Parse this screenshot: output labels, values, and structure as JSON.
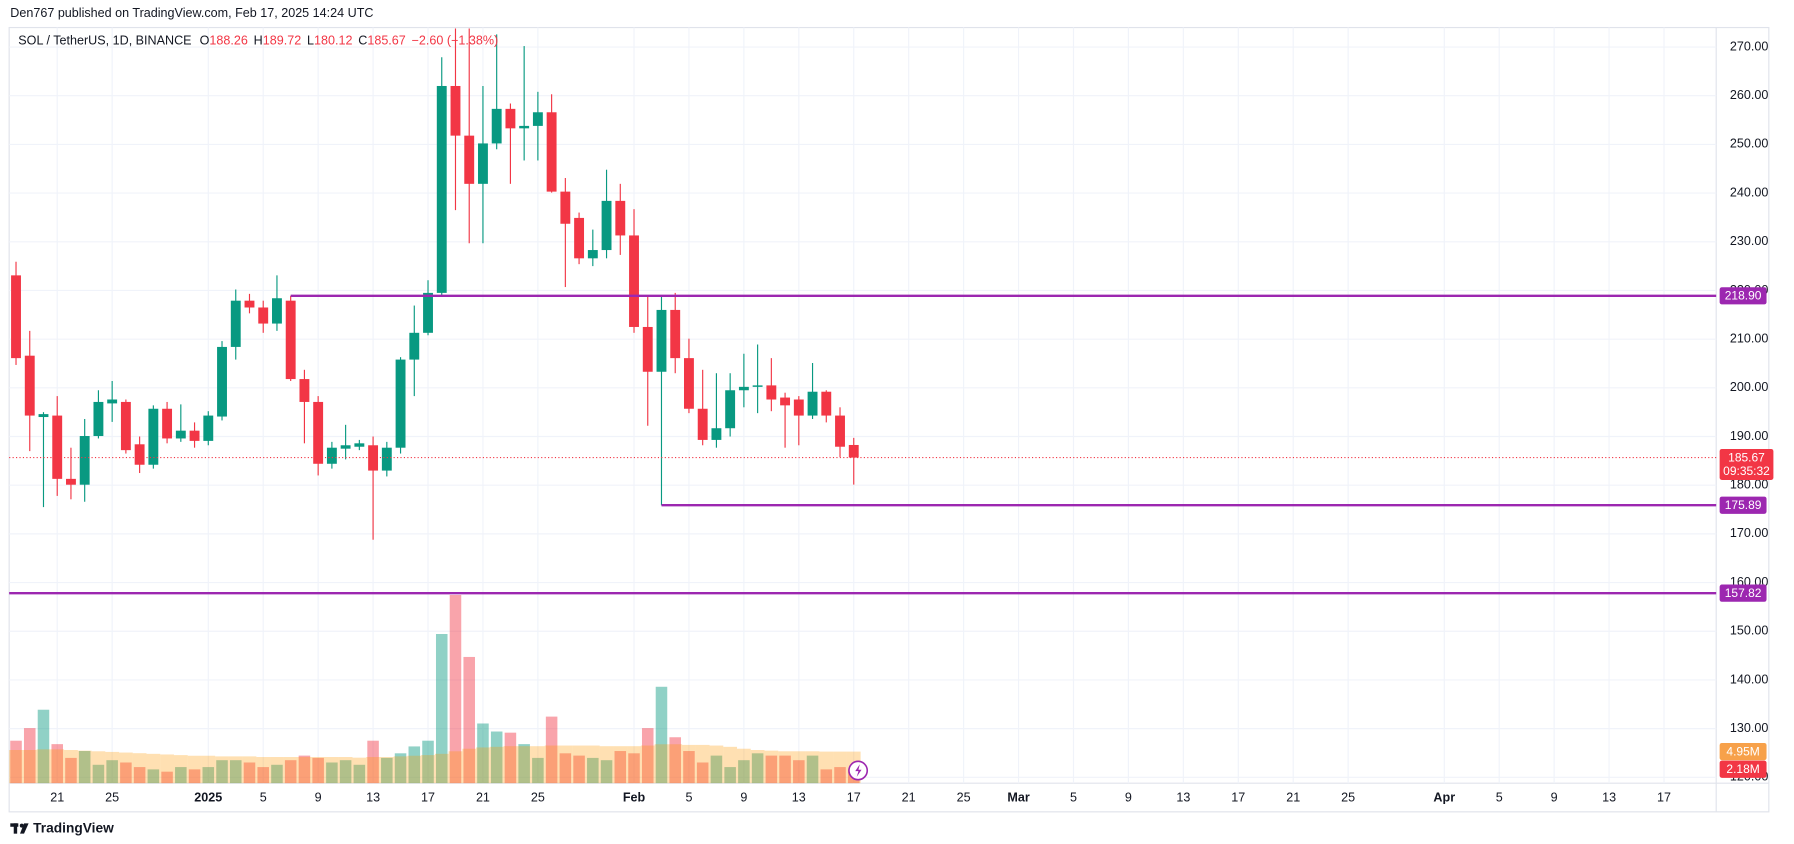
{
  "header": "Den767 published on TradingView.com, Feb 17, 2025 14:24 UTC",
  "footer": "TradingView",
  "chart_data": {
    "type": "candlestick",
    "title": "SOL / TetherUS, 1D, BINANCE",
    "legend_labels": [
      "O",
      "H",
      "L",
      "C"
    ],
    "change": "−2.60 (−1.38%)",
    "countdown": "09:35:32",
    "grid": true,
    "colors": {
      "up": "#089981",
      "down": "#f23645"
    },
    "xlim": [
      -0.5,
      123.8
    ],
    "xticks": [
      {
        "value": 3,
        "label": "21"
      },
      {
        "value": 7,
        "label": "25"
      },
      {
        "value": 14,
        "label": "2025"
      },
      {
        "value": 18,
        "label": "5"
      },
      {
        "value": 22,
        "label": "9"
      },
      {
        "value": 26,
        "label": "13"
      },
      {
        "value": 30,
        "label": "17"
      },
      {
        "value": 34,
        "label": "21"
      },
      {
        "value": 38,
        "label": "25"
      },
      {
        "value": 45,
        "label": "Feb"
      },
      {
        "value": 49,
        "label": "5"
      },
      {
        "value": 53,
        "label": "9"
      },
      {
        "value": 57,
        "label": "13"
      },
      {
        "value": 61,
        "label": "17"
      },
      {
        "value": 65,
        "label": "21"
      },
      {
        "value": 69,
        "label": "25"
      },
      {
        "value": 73,
        "label": "Mar"
      },
      {
        "value": 77,
        "label": "5"
      },
      {
        "value": 81,
        "label": "9"
      },
      {
        "value": 85,
        "label": "13"
      },
      {
        "value": 89,
        "label": "17"
      },
      {
        "value": 93,
        "label": "21"
      },
      {
        "value": 97,
        "label": "25"
      },
      {
        "value": 104,
        "label": "Apr"
      },
      {
        "value": 108,
        "label": "5"
      },
      {
        "value": 112,
        "label": "9"
      },
      {
        "value": 116,
        "label": "13"
      },
      {
        "value": 120,
        "label": "17"
      }
    ],
    "ylim": [
      118.8,
      274.0
    ],
    "yticks": [
      {
        "value": 120,
        "label": "120.00"
      },
      {
        "value": 130,
        "label": "130.00"
      },
      {
        "value": 140,
        "label": "140.00"
      },
      {
        "value": 150,
        "label": "150.00"
      },
      {
        "value": 160,
        "label": "160.00"
      },
      {
        "value": 170,
        "label": "170.00"
      },
      {
        "value": 180,
        "label": "180.00"
      },
      {
        "value": 190,
        "label": "190.00"
      },
      {
        "value": 200,
        "label": "200.00"
      },
      {
        "value": 210,
        "label": "210.00"
      },
      {
        "value": 220,
        "label": "220.00"
      },
      {
        "value": 230,
        "label": "230.00"
      },
      {
        "value": 240,
        "label": "240.00"
      },
      {
        "value": 250,
        "label": "250.00"
      },
      {
        "value": 260,
        "label": "260.00"
      },
      {
        "value": 270,
        "label": "270.00"
      }
    ],
    "open": [
      223.1,
      206.6,
      194.0,
      194.3,
      181.3,
      180.1,
      190.1,
      196.8,
      197.1,
      188.4,
      184.2,
      195.7,
      189.6,
      191.2,
      189.1,
      194.1,
      208.4,
      217.9,
      216.5,
      213.2,
      217.9,
      201.8,
      197.1,
      184.4,
      187.5,
      187.9,
      188.2,
      183.0,
      187.7,
      205.8,
      211.3,
      219.5,
      262.0,
      251.8,
      241.9,
      250.2,
      257.3,
      253.3,
      253.8,
      256.6,
      240.3,
      234.9,
      226.6,
      228.3,
      238.4,
      231.3,
      212.5,
      203.3,
      216.0,
      206.1,
      195.7,
      189.3,
      191.7,
      199.5,
      200.2,
      200.5,
      198.0,
      197.6,
      194.3,
      199.2,
      194.3,
      188.26
    ],
    "high": [
      225.9,
      211.7,
      195.0,
      198.3,
      187.7,
      193.6,
      199.5,
      201.4,
      197.6,
      190.0,
      196.4,
      197.1,
      196.6,
      192.9,
      195.2,
      209.6,
      220.2,
      219.3,
      217.9,
      223.1,
      218.9,
      203.7,
      198.3,
      188.9,
      192.4,
      189.3,
      190.0,
      188.9,
      206.3,
      216.9,
      222.1,
      267.9,
      273.8,
      273.8,
      262.0,
      272.6,
      258.4,
      270.2,
      260.8,
      260.3,
      243.1,
      236.0,
      232.5,
      244.8,
      241.9,
      236.7,
      218.9,
      218.9,
      219.5,
      210.1,
      203.7,
      203.0,
      203.0,
      207.0,
      208.9,
      206.1,
      199.0,
      198.3,
      205.1,
      199.5,
      196.0,
      189.72
    ],
    "low": [
      204.7,
      187.0,
      175.5,
      177.8,
      177.1,
      176.6,
      189.6,
      193.0,
      186.5,
      182.5,
      183.4,
      188.6,
      188.9,
      187.7,
      188.2,
      193.3,
      205.8,
      215.3,
      211.3,
      211.7,
      201.4,
      188.6,
      182.0,
      183.4,
      185.3,
      187.2,
      168.8,
      181.8,
      186.5,
      198.3,
      210.8,
      218.8,
      236.5,
      229.7,
      229.7,
      249.0,
      241.9,
      246.7,
      246.7,
      240.1,
      220.7,
      225.4,
      225.0,
      226.6,
      227.3,
      211.3,
      192.2,
      175.89,
      203.0,
      194.8,
      188.2,
      187.7,
      190.0,
      196.0,
      194.8,
      195.2,
      187.7,
      188.2,
      193.6,
      192.9,
      185.8,
      180.12
    ],
    "close": [
      206.1,
      194.3,
      194.6,
      181.3,
      180.1,
      190.1,
      197.1,
      197.6,
      187.2,
      184.2,
      195.7,
      189.6,
      191.2,
      189.1,
      194.3,
      208.4,
      217.9,
      216.5,
      213.2,
      218.4,
      201.8,
      197.1,
      184.4,
      187.7,
      188.2,
      188.6,
      183.0,
      187.7,
      205.8,
      211.3,
      219.5,
      262.0,
      251.8,
      241.9,
      250.2,
      257.3,
      253.3,
      253.8,
      256.6,
      240.3,
      233.7,
      226.6,
      228.3,
      238.4,
      231.3,
      212.5,
      203.3,
      216.0,
      206.1,
      195.7,
      189.3,
      191.7,
      199.5,
      200.2,
      200.5,
      197.6,
      196.4,
      194.3,
      199.2,
      194.3,
      187.9,
      185.67
    ],
    "levels": [
      {
        "value": 218.9,
        "label": "218.90"
      },
      {
        "value": 175.89,
        "label": "175.89"
      },
      {
        "value": 157.82,
        "label": "157.82"
      }
    ],
    "level_color": "#9c27b0",
    "volume_lim": [
      0,
      40
    ],
    "volume": [
      6.66,
      8.64,
      11.52,
      6.12,
      3.96,
      5.04,
      2.88,
      3.6,
      3.24,
      2.52,
      2.16,
      1.8,
      2.52,
      2.16,
      2.52,
      3.6,
      3.6,
      3.24,
      2.52,
      2.88,
      3.6,
      4.32,
      3.96,
      3.24,
      3.6,
      2.88,
      6.66,
      3.96,
      4.68,
      5.76,
      6.66,
      23.4,
      29.52,
      19.8,
      9.36,
      8.1,
      7.92,
      6.12,
      3.96,
      10.44,
      4.68,
      4.32,
      3.96,
      3.6,
      5.04,
      4.68,
      8.64,
      15.12,
      7.2,
      5.04,
      3.24,
      4.32,
      2.52,
      3.6,
      4.68,
      4.32,
      4.32,
      3.6,
      4.32,
      2.16,
      2.52,
      2.18
    ],
    "volume_ma": [
      5.2,
      5.2,
      5.3,
      5.3,
      5.2,
      5.1,
      5.0,
      4.9,
      4.8,
      4.7,
      4.6,
      4.5,
      4.4,
      4.3,
      4.3,
      4.2,
      4.2,
      4.2,
      4.1,
      4.1,
      4.1,
      4.1,
      4.1,
      4.1,
      4.1,
      4.0,
      4.1,
      4.1,
      4.2,
      4.3,
      4.4,
      4.6,
      5.0,
      5.4,
      5.6,
      5.7,
      5.8,
      5.8,
      5.8,
      5.9,
      5.9,
      5.9,
      5.9,
      5.8,
      5.8,
      5.8,
      5.9,
      6.1,
      6.1,
      6.0,
      6.0,
      5.9,
      5.7,
      5.4,
      5.2,
      5.1,
      5.0,
      5.0,
      5.0,
      4.95,
      4.95,
      4.95
    ],
    "volume_ma_color": "#ff9800",
    "volume_labels": [
      {
        "value": 4.95,
        "label": "4.95M",
        "color": "#f7a14a"
      },
      {
        "value": 2.18,
        "label": "2.18M",
        "color": "#f23645"
      }
    ]
  }
}
